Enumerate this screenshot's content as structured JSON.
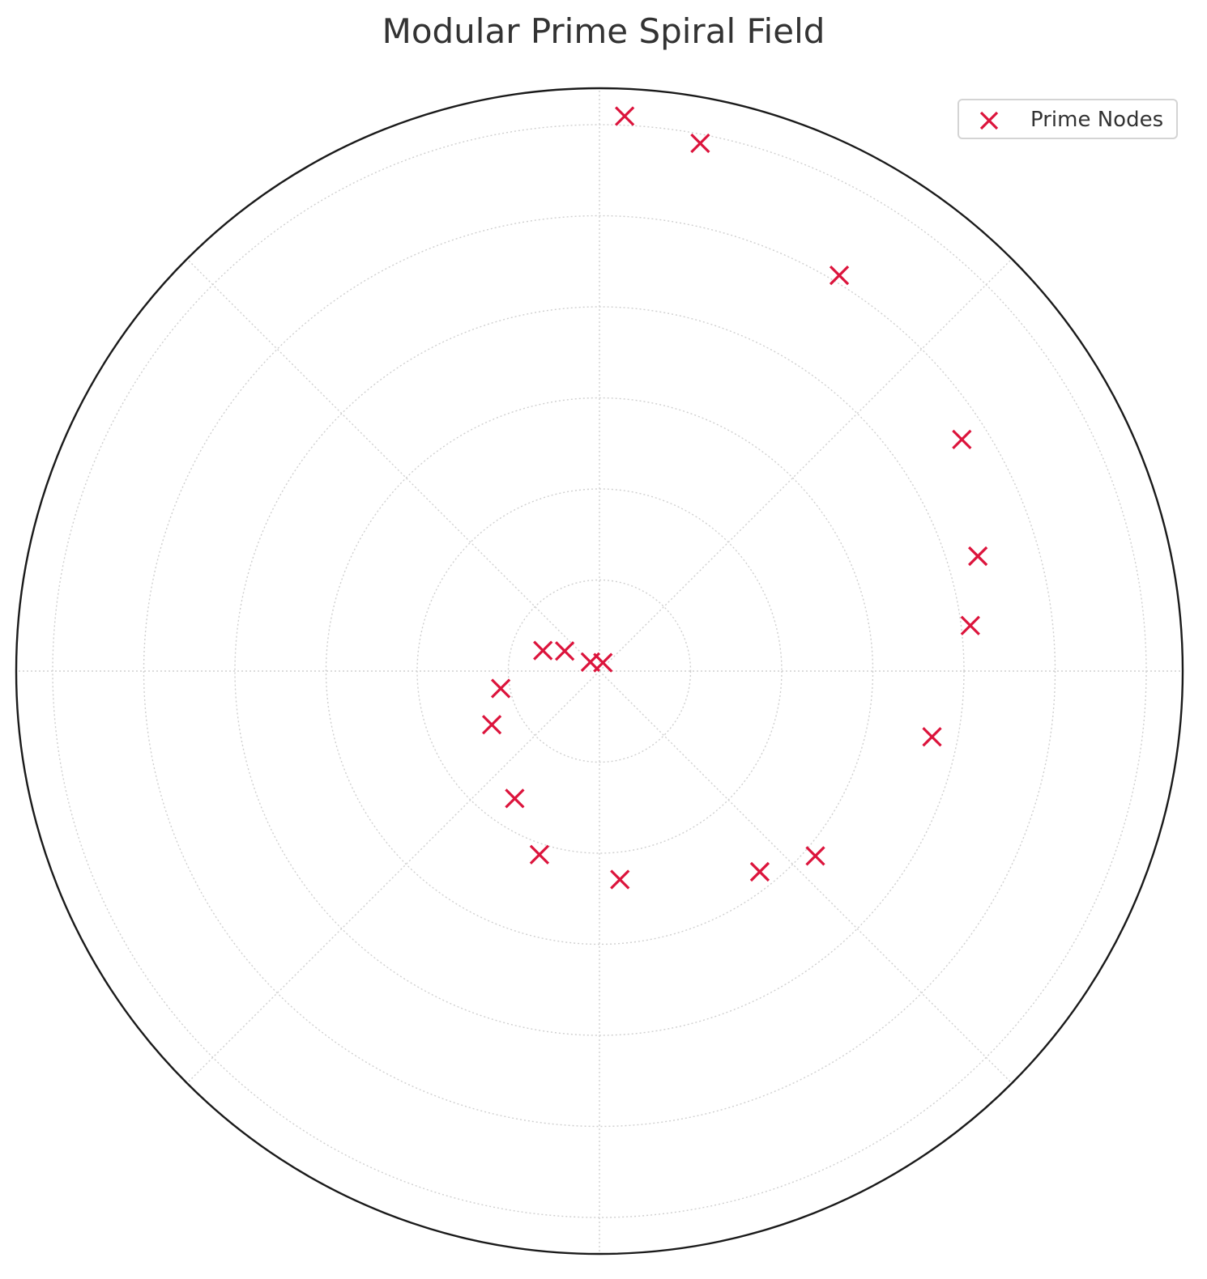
{
  "chart_data": {
    "type": "scatter",
    "projection": "polar",
    "title": "Modular Prime Spiral Field",
    "rlim": [
      0,
      32
    ],
    "r_gridlines": [
      5,
      10,
      15,
      20,
      25,
      30
    ],
    "theta_gridlines_deg": [
      0,
      45,
      90,
      135,
      180,
      225,
      270,
      315
    ],
    "tick_labels_visible": false,
    "grid": true,
    "legend": {
      "placement": "upper right",
      "entries": [
        "Prime Nodes"
      ]
    },
    "series": [
      {
        "name": "Prime Nodes",
        "marker": "x",
        "color": "#dc143c",
        "points": [
          {
            "theta_deg": 67.6,
            "r": 0.5
          },
          {
            "theta_deg": 135.0,
            "r": 0.7
          },
          {
            "theta_deg": 160.0,
            "r": 3.3
          },
          {
            "theta_deg": 150.0,
            "r": 2.2
          },
          {
            "theta_deg": 190.0,
            "r": 5.5
          },
          {
            "theta_deg": 206.5,
            "r": 6.6
          },
          {
            "theta_deg": 236.4,
            "r": 8.4
          },
          {
            "theta_deg": 251.9,
            "r": 10.6
          },
          {
            "theta_deg": 275.6,
            "r": 11.5
          },
          {
            "theta_deg": 308.6,
            "r": 14.1
          },
          {
            "theta_deg": 319.4,
            "r": 15.6
          },
          {
            "theta_deg": 348.8,
            "r": 18.6
          },
          {
            "theta_deg": 7.0,
            "r": 20.5
          },
          {
            "theta_deg": 16.9,
            "r": 21.7
          },
          {
            "theta_deg": 32.6,
            "r": 23.6
          },
          {
            "theta_deg": 58.8,
            "r": 25.4
          },
          {
            "theta_deg": 79.2,
            "r": 29.5
          },
          {
            "theta_deg": 87.4,
            "r": 30.5
          }
        ]
      }
    ]
  }
}
